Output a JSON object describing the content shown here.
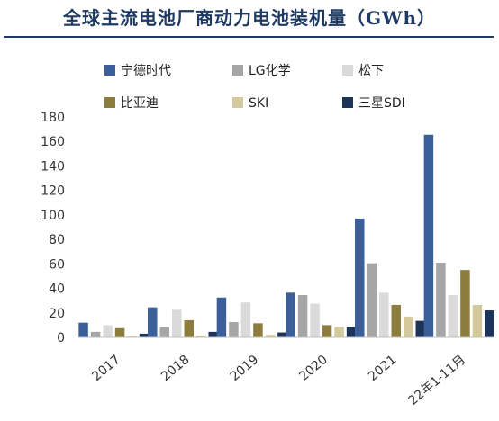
{
  "title": "全球主流电池厂商动力电池装机量（GWh）",
  "chart_data": {
    "type": "bar",
    "title": "全球主流电池厂商动力电池装机量（GWh）",
    "xlabel": "",
    "ylabel": "",
    "categories": [
      "2017",
      "2018",
      "2019",
      "2020",
      "2021",
      "22年1-11月"
    ],
    "ylim": [
      0,
      180
    ],
    "yticks": [
      0,
      20,
      40,
      60,
      80,
      100,
      120,
      140,
      160,
      180
    ],
    "grid": false,
    "legend_position": "top",
    "series": [
      {
        "name": "宁德时代",
        "color": "#3c5f9a",
        "values": [
          12,
          24.5,
          32.5,
          36.5,
          97,
          165.5
        ]
      },
      {
        "name": "LG化学",
        "color": "#a6a6a6",
        "values": [
          4.5,
          8.5,
          12.5,
          34.5,
          60.5,
          61
        ]
      },
      {
        "name": "松下",
        "color": "#dadada",
        "values": [
          10,
          22.5,
          28.5,
          27.5,
          36.5,
          34.5
        ]
      },
      {
        "name": "比亚迪",
        "color": "#8c7d3e",
        "values": [
          7.5,
          14,
          11.5,
          10,
          26.5,
          55
        ]
      },
      {
        "name": "SKI",
        "color": "#d3c99c",
        "values": [
          1,
          1.5,
          2,
          8.5,
          17,
          26.5
        ]
      },
      {
        "name": "三星SDI",
        "color": "#1c3458",
        "values": [
          3,
          4.5,
          4,
          8.5,
          13.5,
          22
        ]
      }
    ]
  }
}
